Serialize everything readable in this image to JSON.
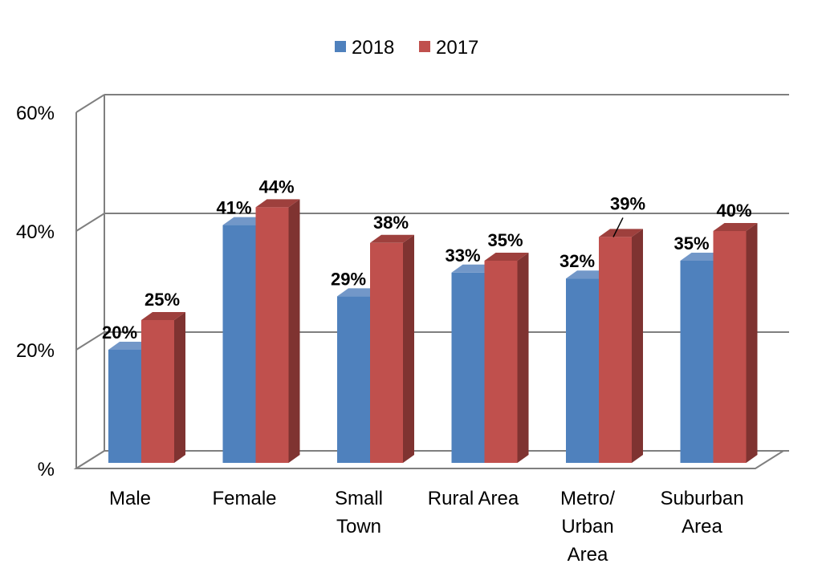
{
  "chart_data": {
    "type": "bar",
    "style": "3d-clustered-column",
    "categories": [
      "Male",
      "Female",
      "Small Town",
      "Rural Area",
      "Metro/ Urban Area",
      "Suburban Area"
    ],
    "category_lines": [
      [
        "Male"
      ],
      [
        "Female"
      ],
      [
        "Small",
        "Town"
      ],
      [
        "Rural Area"
      ],
      [
        "Metro/",
        "Urban",
        "Area"
      ],
      [
        "Suburban",
        "Area"
      ]
    ],
    "series": [
      {
        "name": "2018",
        "values": [
          20,
          41,
          29,
          33,
          32,
          35
        ],
        "labels": [
          "20%",
          "41%",
          "29%",
          "33%",
          "32%",
          "35%"
        ]
      },
      {
        "name": "2017",
        "values": [
          25,
          44,
          38,
          35,
          39,
          40
        ],
        "labels": [
          "25%",
          "44%",
          "38%",
          "35%",
          "39%",
          "40%"
        ]
      }
    ],
    "ylim": [
      0,
      60
    ],
    "yticks": [
      0,
      20,
      40,
      60
    ],
    "ytick_labels": [
      "%",
      "20%",
      "40%",
      "60%"
    ],
    "grid": true,
    "legend_position": "top-center",
    "colors": {
      "2018": {
        "front": "#4f81bd",
        "side": "#385d8a",
        "top": "#7297c8"
      },
      "2017": {
        "front": "#c0504d",
        "side": "#7f3331",
        "top": "#9e403d"
      },
      "grid": "#7f7f7f"
    }
  }
}
